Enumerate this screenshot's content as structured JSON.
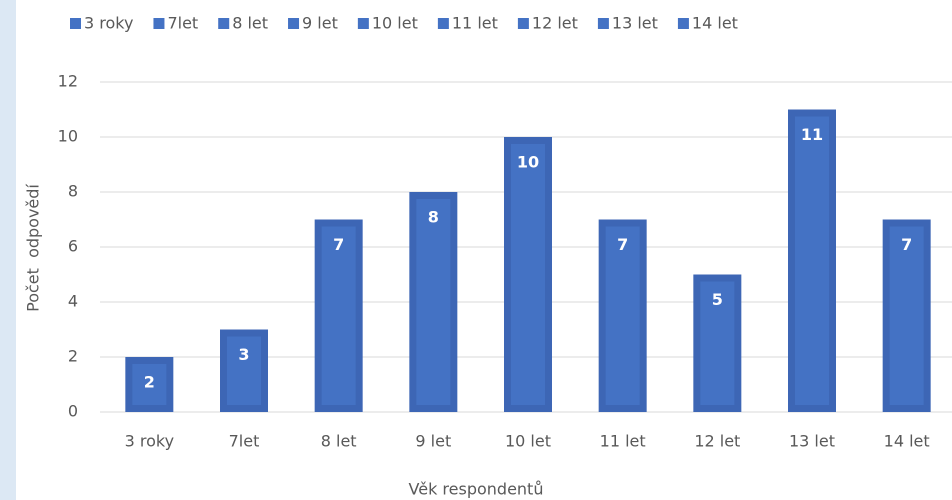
{
  "chart_data": {
    "type": "bar",
    "x_label": "Věk respondentů",
    "y_label": "Počet  odpovědí",
    "categories": [
      "3 roky",
      "7let",
      "8 let",
      "9 let",
      "10 let",
      "11 let",
      "12 let",
      "13 let",
      "14 let"
    ],
    "values": [
      2,
      3,
      7,
      8,
      10,
      7,
      5,
      11,
      7
    ],
    "color": "#4472c4",
    "ylim": [
      0,
      12
    ],
    "yticks": [
      0,
      2,
      4,
      6,
      8,
      10,
      12
    ],
    "grid": true,
    "legend": "top"
  }
}
